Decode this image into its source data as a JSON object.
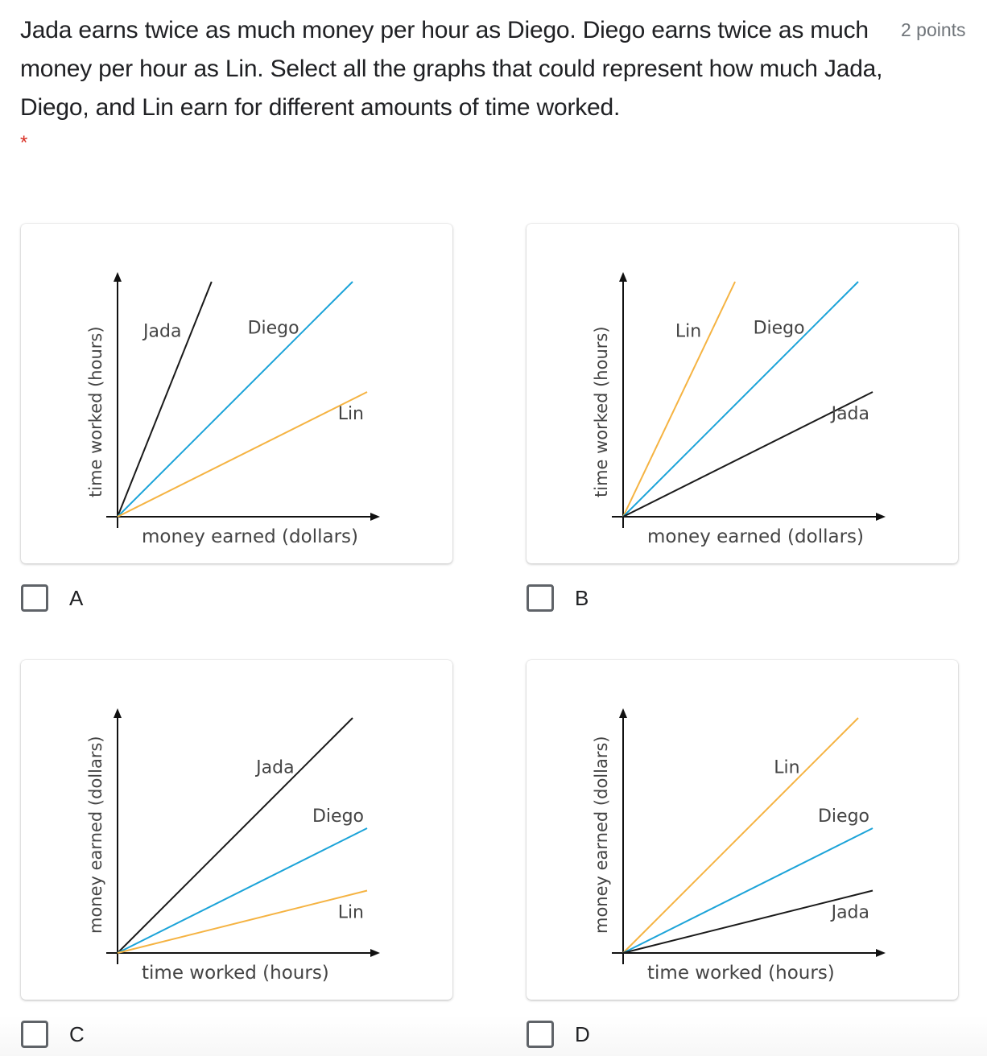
{
  "question": {
    "text": "Jada earns twice as much money per hour as Diego. Diego earns twice as much money per hour as Lin. Select all the graphs that could represent how much Jada, Diego, and Lin earn for different amounts of time worked.",
    "points": "2 points",
    "required_marker": "*"
  },
  "colors": {
    "Jada": "#1a1a1a",
    "Diego": "#1ba3d8",
    "Lin": "#f5b342"
  },
  "options": [
    {
      "label": "A",
      "checked": false
    },
    {
      "label": "B",
      "checked": false
    },
    {
      "label": "C",
      "checked": false
    },
    {
      "label": "D",
      "checked": false
    }
  ],
  "chart_data": [
    {
      "type": "line",
      "option": "A",
      "xlabel": "money earned (dollars)",
      "ylabel": "time worked (hours)",
      "series": [
        {
          "name": "Jada",
          "slope": 2.5
        },
        {
          "name": "Diego",
          "slope": 1.0
        },
        {
          "name": "Lin",
          "slope": 0.5
        }
      ]
    },
    {
      "type": "line",
      "option": "B",
      "xlabel": "money earned (dollars)",
      "ylabel": "time worked (hours)",
      "series": [
        {
          "name": "Lin",
          "slope": 2.1
        },
        {
          "name": "Diego",
          "slope": 1.0
        },
        {
          "name": "Jada",
          "slope": 0.5
        }
      ]
    },
    {
      "type": "line",
      "option": "C",
      "xlabel": "time worked (hours)",
      "ylabel": "money earned (dollars)",
      "series": [
        {
          "name": "Jada",
          "slope": 1.0
        },
        {
          "name": "Diego",
          "slope": 0.5
        },
        {
          "name": "Lin",
          "slope": 0.25
        }
      ]
    },
    {
      "type": "line",
      "option": "D",
      "xlabel": "time worked (hours)",
      "ylabel": "money earned (dollars)",
      "series": [
        {
          "name": "Lin",
          "slope": 1.0
        },
        {
          "name": "Diego",
          "slope": 0.5
        },
        {
          "name": "Jada",
          "slope": 0.25
        }
      ]
    }
  ]
}
